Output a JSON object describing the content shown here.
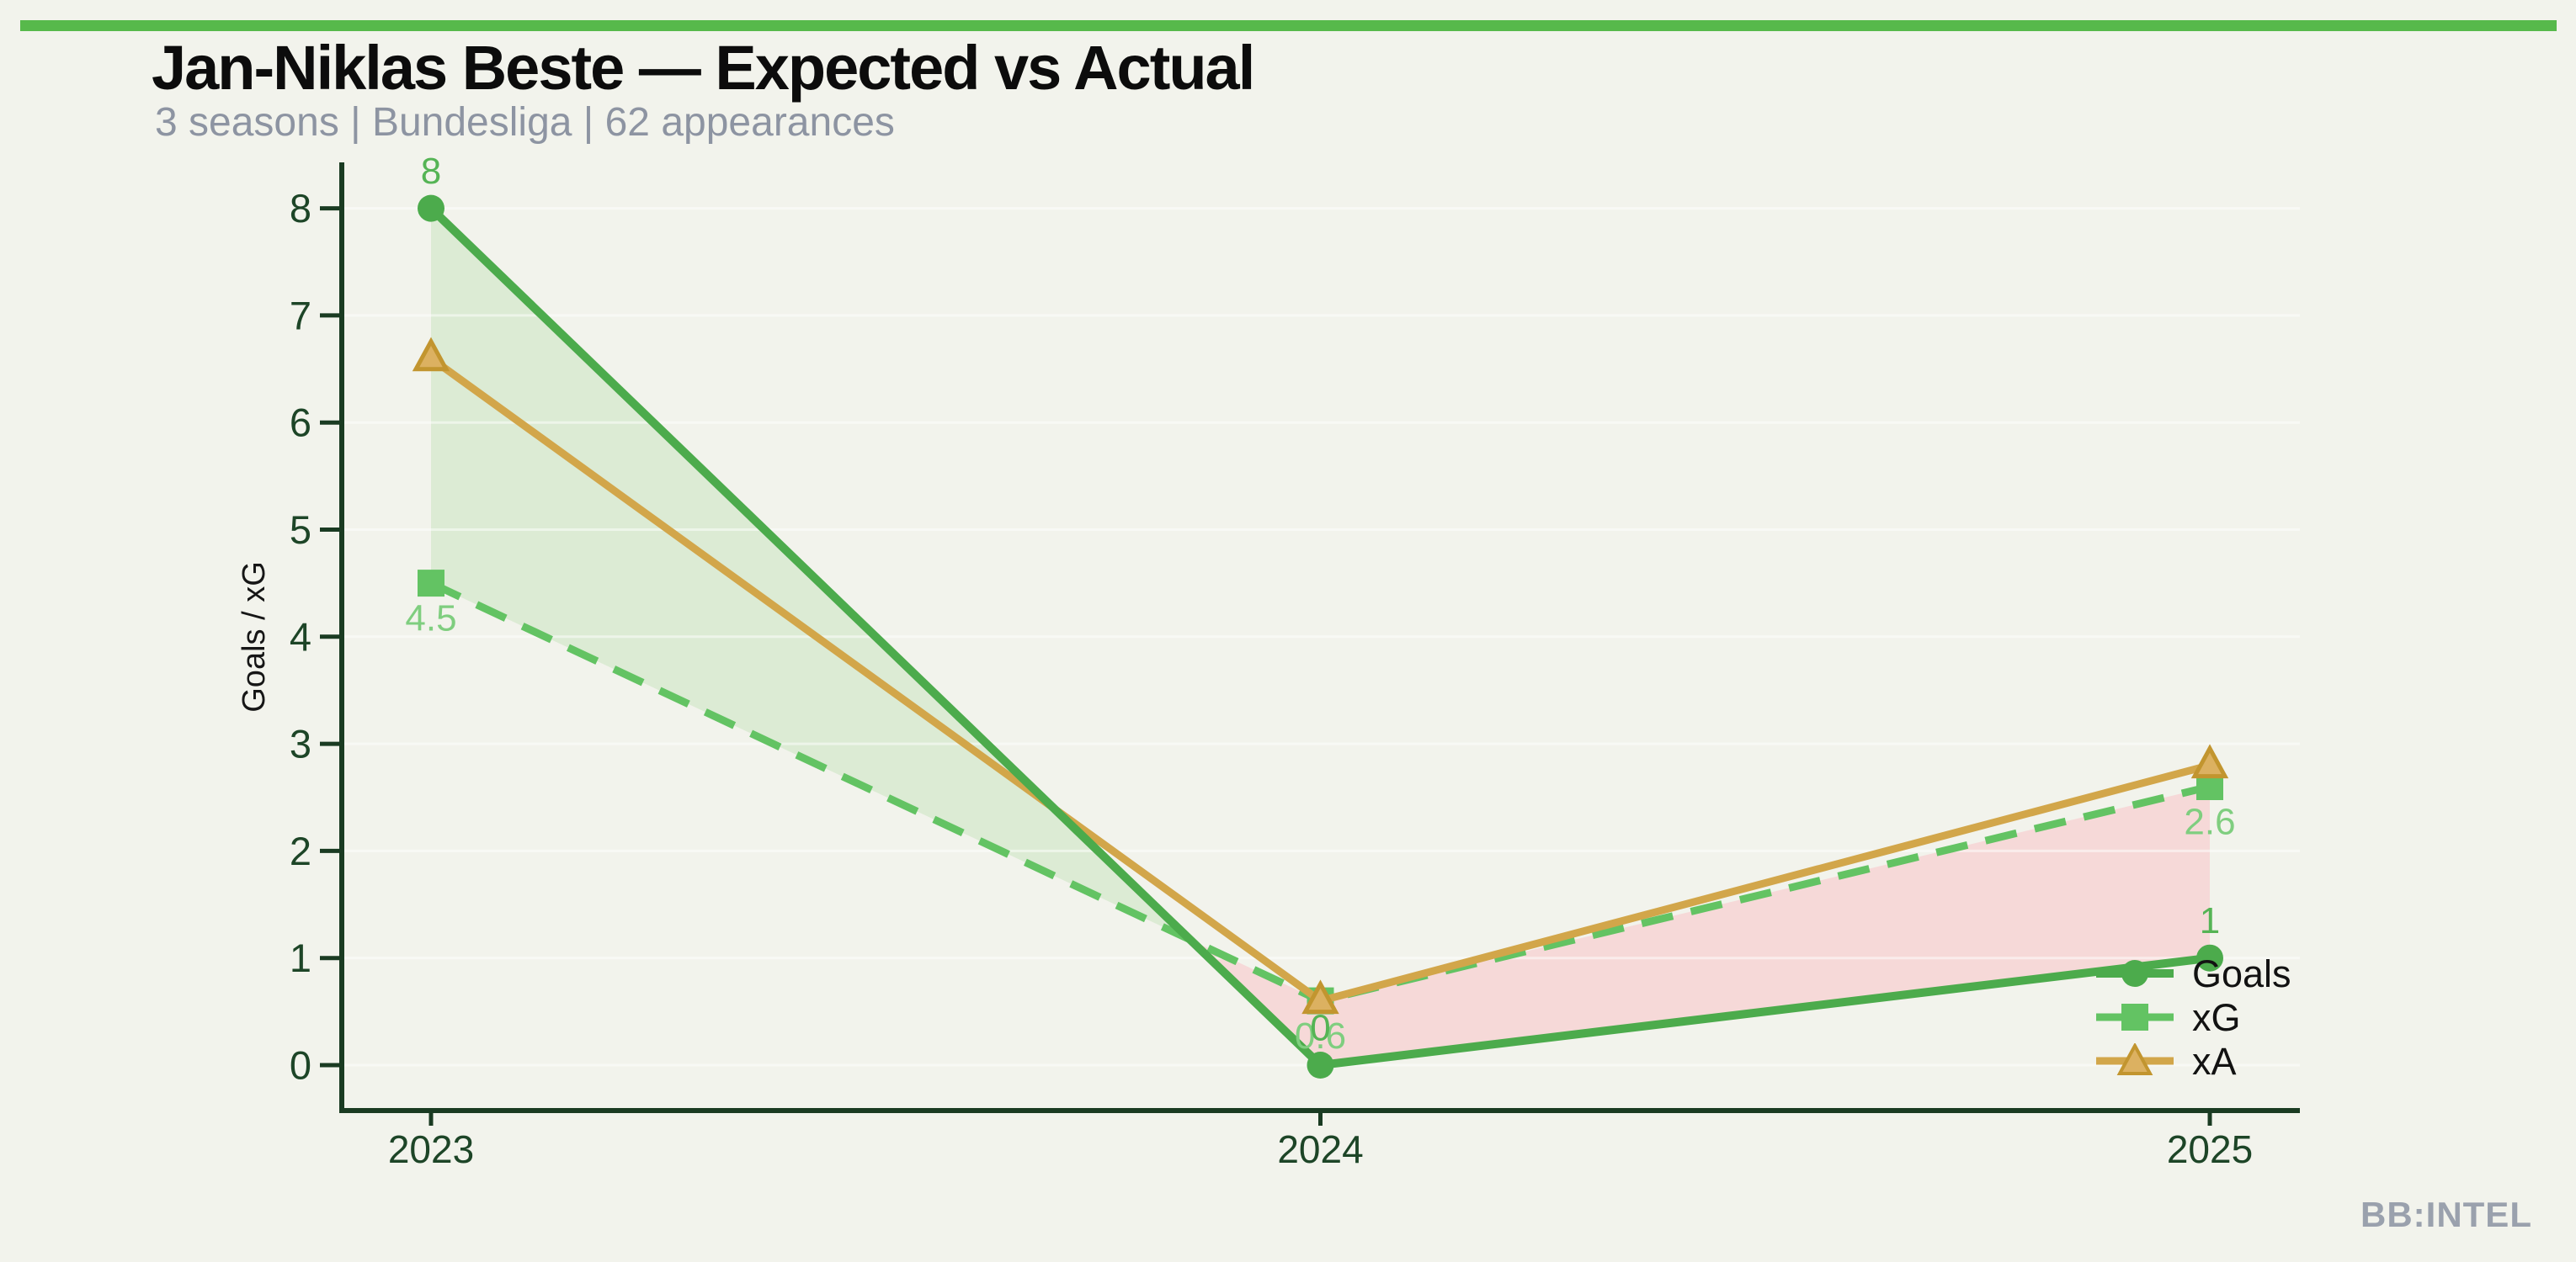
{
  "header": {
    "title": "Jan-Niklas Beste — Expected vs Actual",
    "subtitle": "3 seasons | Bundesliga | 62 appearances"
  },
  "footer": {
    "watermark": "BB:INTEL"
  },
  "colors": {
    "background": "#f2f3ec",
    "accent_bar": "#57b94b",
    "title_text": "#0c0c0c",
    "subtitle_text": "#8d94a2",
    "axis_spine": "#1a3b22",
    "tick_label": "#1d4527",
    "axis_label": "#161616",
    "gridline": "#ffffff",
    "fill_goals_above_xg": "#dcebd4",
    "fill_xg_above_goals": "#f6d9d8",
    "watermark_text": "#9aa1ad"
  },
  "chart_data": {
    "type": "line",
    "title": "Jan-Niklas Beste — Expected vs Actual",
    "subtitle": "3 seasons | Bundesliga | 62 appearances",
    "categories": [
      "2023",
      "2024",
      "2025"
    ],
    "series": [
      {
        "name": "Goals",
        "values": [
          8,
          0,
          1
        ],
        "color": "#4cab4c",
        "line_style": "solid",
        "line_width": 10,
        "marker": "circle",
        "labels": [
          "8",
          "0",
          "1"
        ],
        "label_color": "#55b455",
        "label_side": "above"
      },
      {
        "name": "xG",
        "values": [
          4.5,
          0.6,
          2.6
        ],
        "color": "#63c363",
        "line_style": "dashed",
        "line_width": 9,
        "marker": "square",
        "labels": [
          "4.5",
          "0.6",
          "2.6"
        ],
        "label_color": "#7fce7f",
        "label_side": "below"
      },
      {
        "name": "xA",
        "values": [
          6.6,
          0.6,
          2.8
        ],
        "color": "#d2a64a",
        "line_style": "solid",
        "line_width": 9,
        "marker": "triangle",
        "marker_fill": "#dcb161",
        "marker_edge": "#c2952f",
        "labels": null
      }
    ],
    "xlabel": "",
    "ylabel": "Goals / xG",
    "ylim": [
      0,
      8
    ],
    "yticks": [
      0,
      1,
      2,
      3,
      4,
      5,
      6,
      7,
      8
    ],
    "grid": "horizontal-faint",
    "legend_position": "inside-right-bottom",
    "fills_description": "shaded band between Goals and xG lines: green where Goals > xG, red where xG > Goals"
  }
}
